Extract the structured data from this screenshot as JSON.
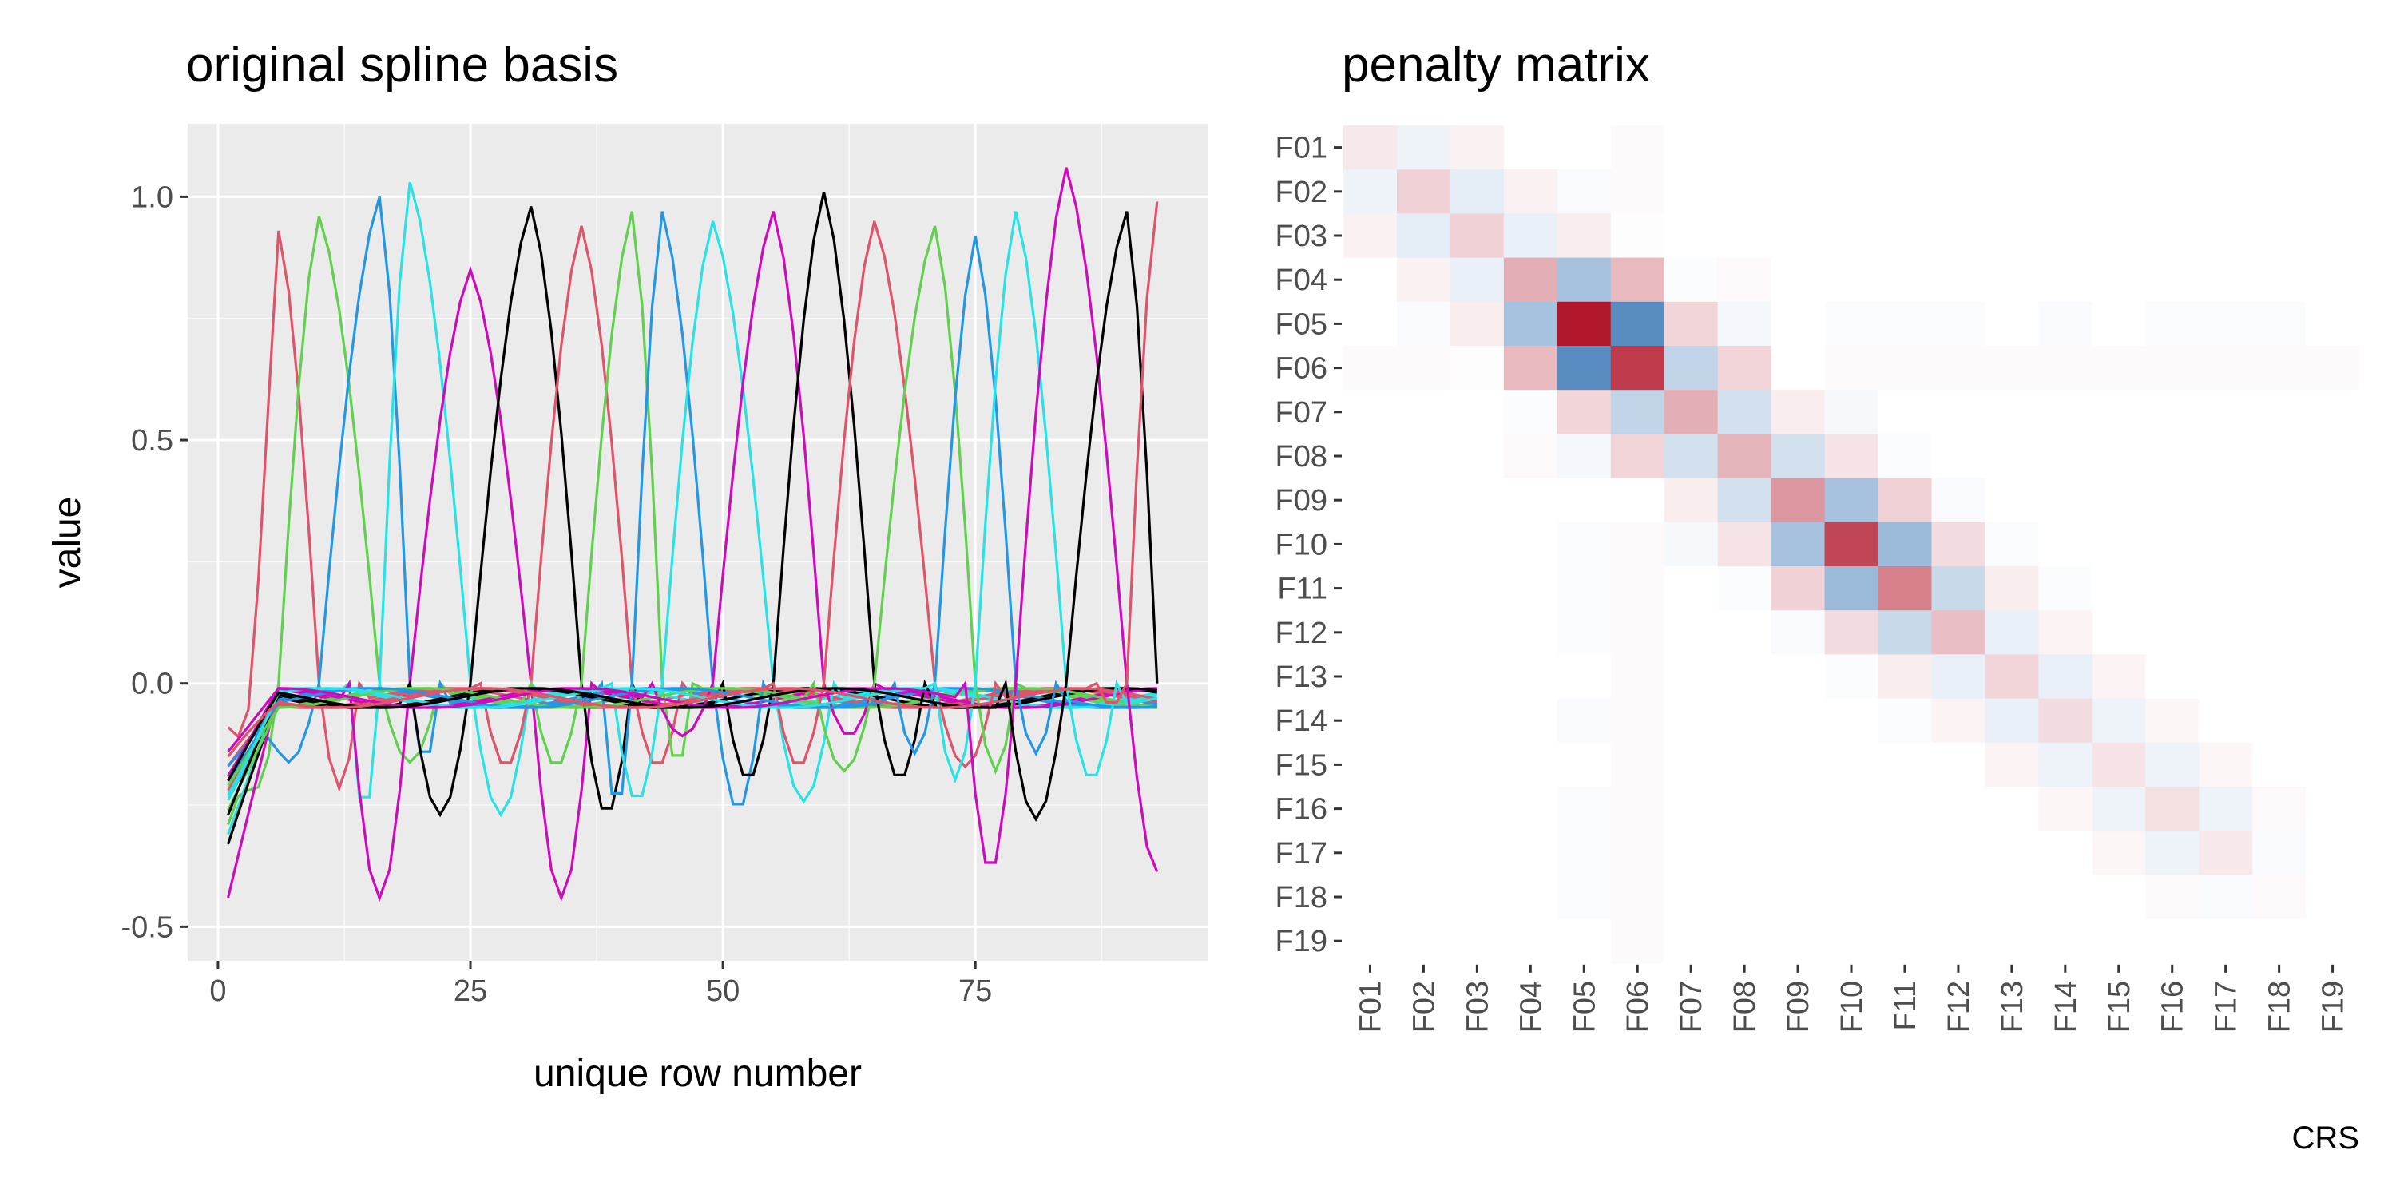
{
  "caption": "CRS",
  "chart_data": [
    {
      "type": "line",
      "title": "original spline basis",
      "xlabel": "unique row number",
      "ylabel": "value",
      "xlim": [
        -3,
        98
      ],
      "ylim": [
        -0.57,
        1.15
      ],
      "x_ticks": [
        0,
        25,
        50,
        75
      ],
      "x_tick_labels": [
        "0",
        "25",
        "50",
        "75"
      ],
      "y_ticks": [
        -0.5,
        0.0,
        0.5,
        1.0
      ],
      "y_tick_labels": [
        "-0.5",
        "0.0",
        "0.5",
        "1.0"
      ],
      "grid": true,
      "background": "#ebebeb",
      "colors": [
        "#DF536B",
        "#61D04F",
        "#2297E6",
        "#28E2E5",
        "#CD0BBC",
        "#000000"
      ],
      "x_range": [
        1,
        93
      ],
      "peak_centers": [
        6,
        10,
        16,
        19,
        25,
        31,
        36,
        41,
        44,
        49,
        55,
        60,
        65,
        71,
        75,
        79,
        84,
        90,
        93
      ],
      "series_order": [
        "F01",
        "F02",
        "F03",
        "F04",
        "F05",
        "F06",
        "F07",
        "F08",
        "F09",
        "F10",
        "F11",
        "F12",
        "F13",
        "F14",
        "F15",
        "F16",
        "F17",
        "F18",
        "F19"
      ],
      "series_note_colors": "series cycle through the six palette colors in order",
      "peak_values": [
        0.93,
        0.96,
        1.0,
        1.03,
        0.85,
        0.98,
        0.94,
        0.97,
        0.97,
        0.95,
        0.97,
        1.01,
        0.95,
        0.94,
        0.92,
        0.97,
        1.06,
        0.97,
        0.99
      ],
      "start_values": [
        -0.09,
        -0.29,
        -0.24,
        -0.31,
        -0.44,
        -0.33,
        -0.22,
        -0.26,
        -0.2,
        -0.24,
        -0.14,
        -0.27,
        -0.17,
        -0.21,
        -0.17,
        -0.23,
        -0.19,
        -0.2,
        -0.15
      ],
      "trough_values": [
        -0.24,
        -0.18,
        -0.18,
        -0.3,
        -0.49,
        -0.3,
        -0.19,
        -0.19,
        -0.29,
        -0.27,
        -0.12,
        -0.22,
        -0.19,
        -0.2,
        -0.16,
        -0.22,
        -0.43,
        -0.31,
        -0.05
      ]
    },
    {
      "type": "heatmap",
      "title": "penalty matrix",
      "rows": [
        "F01",
        "F02",
        "F03",
        "F04",
        "F05",
        "F06",
        "F07",
        "F08",
        "F09",
        "F10",
        "F11",
        "F12",
        "F13",
        "F14",
        "F15",
        "F16",
        "F17",
        "F18",
        "F19"
      ],
      "cols": [
        "F01",
        "F02",
        "F03",
        "F04",
        "F05",
        "F06",
        "F07",
        "F08",
        "F09",
        "F10",
        "F11",
        "F12",
        "F13",
        "F14",
        "F15",
        "F16",
        "F17",
        "F18",
        "F19"
      ],
      "colors": {
        "positive": "#b2182b",
        "negative": "#2166ac",
        "zero": "#ffffff"
      },
      "value_range": [
        -1,
        1
      ],
      "values": [
        [
          0.1,
          -0.08,
          0.06,
          0,
          0,
          0.02,
          0,
          0,
          0,
          0,
          0,
          0,
          0,
          0,
          0,
          0,
          0,
          0,
          0
        ],
        [
          -0.08,
          0.2,
          -0.12,
          0.06,
          -0.03,
          0.02,
          0,
          0,
          0,
          0,
          0,
          0,
          0,
          0,
          0,
          0,
          0,
          0,
          0
        ],
        [
          0.06,
          -0.12,
          0.2,
          -0.1,
          0.08,
          -0.01,
          0,
          0,
          0,
          0,
          0,
          0,
          0,
          0,
          0,
          0,
          0,
          0,
          0
        ],
        [
          0,
          0.06,
          -0.1,
          0.35,
          -0.4,
          0.3,
          -0.02,
          0.03,
          0,
          0,
          0,
          0,
          0,
          0,
          0,
          0,
          0,
          0,
          0
        ],
        [
          0,
          -0.03,
          0.08,
          -0.4,
          1.0,
          -0.75,
          0.18,
          -0.05,
          0,
          -0.02,
          -0.02,
          -0.02,
          0,
          -0.03,
          0,
          -0.02,
          -0.02,
          -0.02,
          0
        ],
        [
          0.02,
          0.02,
          -0.01,
          0.3,
          -0.75,
          0.85,
          -0.28,
          0.18,
          0,
          0.02,
          0.02,
          0.02,
          0.02,
          0.02,
          0.02,
          0.02,
          0.02,
          0.02,
          0.02
        ],
        [
          0,
          0,
          0,
          -0.02,
          0.18,
          -0.28,
          0.35,
          -0.2,
          0.08,
          -0.04,
          0,
          0,
          0,
          0,
          0,
          0,
          0,
          0,
          0
        ],
        [
          0,
          0,
          0,
          0.03,
          -0.05,
          0.18,
          -0.2,
          0.32,
          -0.2,
          0.12,
          -0.02,
          0,
          0,
          0,
          0,
          0,
          0,
          0,
          0
        ],
        [
          0,
          0,
          0,
          0,
          0,
          0,
          0.08,
          -0.2,
          0.45,
          -0.4,
          0.2,
          -0.03,
          0,
          0,
          0,
          0,
          0,
          0,
          0
        ],
        [
          0,
          0,
          0,
          0,
          -0.02,
          0.02,
          -0.04,
          0.12,
          -0.4,
          0.8,
          -0.45,
          0.15,
          -0.02,
          0,
          0,
          0,
          0,
          0,
          0
        ],
        [
          0,
          0,
          0,
          0,
          -0.02,
          0.02,
          0,
          -0.02,
          0.2,
          -0.45,
          0.55,
          -0.25,
          0.08,
          -0.02,
          0,
          0,
          0,
          0,
          0
        ],
        [
          0,
          0,
          0,
          0,
          -0.02,
          0.02,
          0,
          0,
          -0.03,
          0.15,
          -0.25,
          0.28,
          -0.1,
          0.05,
          0,
          0,
          0,
          0,
          0
        ],
        [
          0,
          0,
          0,
          0,
          0,
          0.02,
          0,
          0,
          0,
          -0.02,
          0.08,
          -0.1,
          0.18,
          -0.1,
          0.05,
          0,
          0,
          0,
          0
        ],
        [
          0,
          0,
          0,
          0,
          -0.03,
          0.02,
          0,
          0,
          0,
          0,
          -0.02,
          0.05,
          -0.1,
          0.15,
          -0.08,
          0.04,
          0,
          0,
          0
        ],
        [
          0,
          0,
          0,
          0,
          0,
          0.02,
          0,
          0,
          0,
          0,
          0,
          0,
          0.05,
          -0.08,
          0.12,
          -0.08,
          0.04,
          0,
          0
        ],
        [
          0,
          0,
          0,
          0,
          -0.02,
          0.02,
          0,
          0,
          0,
          0,
          0,
          0,
          0,
          0.04,
          -0.08,
          0.14,
          -0.08,
          0.03,
          0
        ],
        [
          0,
          0,
          0,
          0,
          -0.02,
          0.02,
          0,
          0,
          0,
          0,
          0,
          0,
          0,
          0,
          0.04,
          -0.08,
          0.1,
          -0.03,
          0
        ],
        [
          0,
          0,
          0,
          0,
          -0.02,
          0.02,
          0,
          0,
          0,
          0,
          0,
          0,
          0,
          0,
          0,
          0.03,
          -0.03,
          0.03,
          0
        ],
        [
          0,
          0,
          0,
          0,
          0,
          0.02,
          0,
          0,
          0,
          0,
          0,
          0,
          0,
          0,
          0,
          0,
          0,
          0,
          0
        ]
      ]
    }
  ]
}
